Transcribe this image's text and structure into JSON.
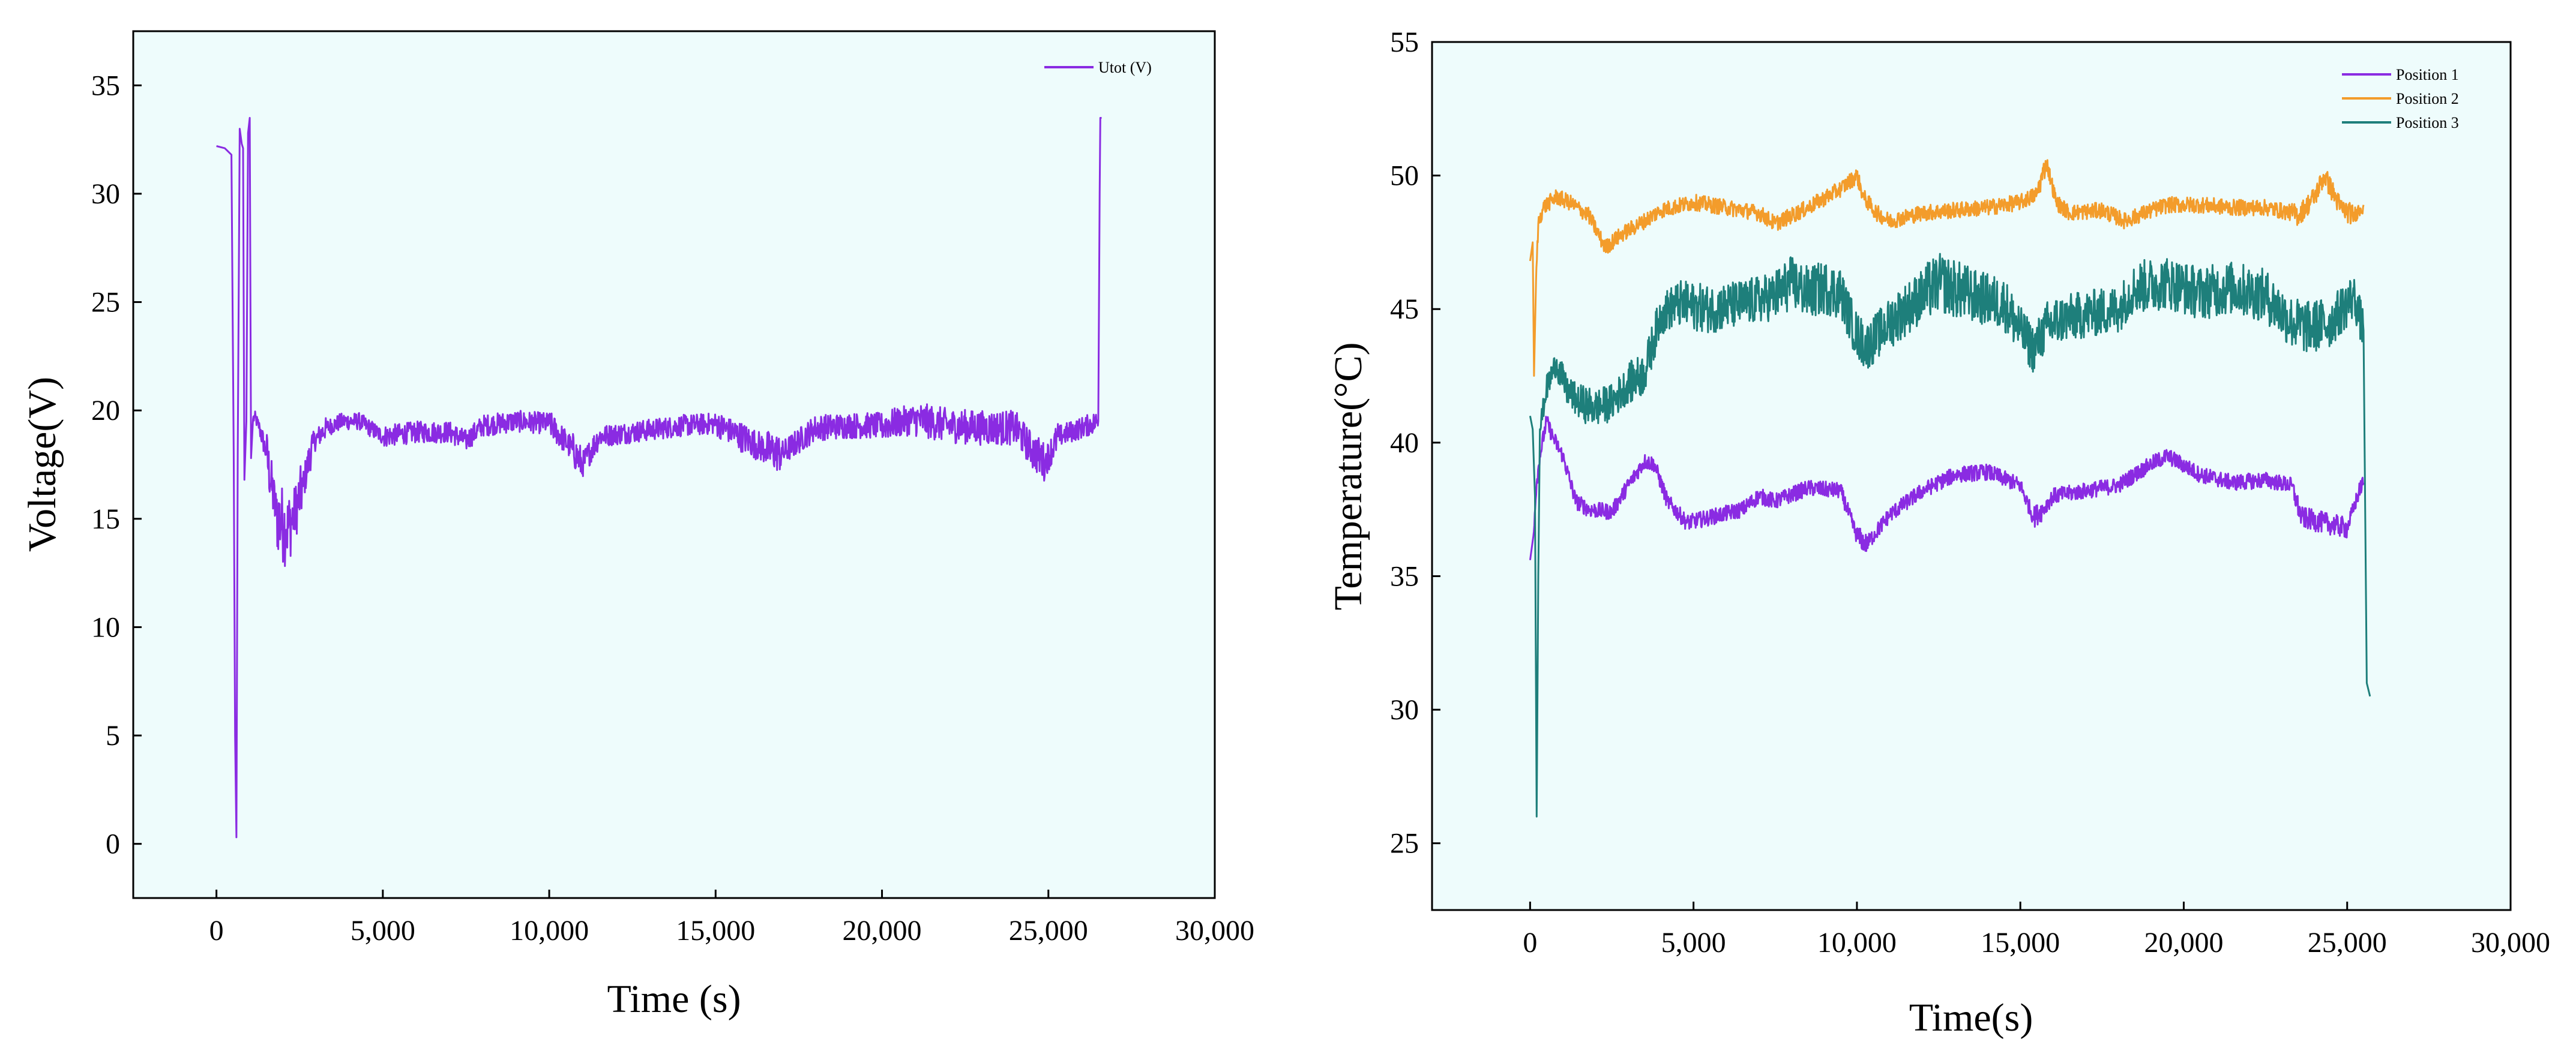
{
  "chart_data": [
    {
      "type": "line",
      "title": "",
      "xlabel": "Time (s)",
      "ylabel": "Voltage(V)",
      "xlim": [
        -2500,
        30000
      ],
      "ylim": [
        -2.5,
        37.5
      ],
      "xticks": [
        0,
        5000,
        10000,
        15000,
        20000,
        25000,
        30000
      ],
      "xtick_labels": [
        "0",
        "5,000",
        "10,000",
        "15,000",
        "20,000",
        "25,000",
        "30,000"
      ],
      "yticks": [
        0,
        5,
        10,
        15,
        20,
        25,
        30,
        35
      ],
      "ytick_labels": [
        "0",
        "5",
        "10",
        "15",
        "20",
        "25",
        "30",
        "35"
      ],
      "background": "#eefcfc",
      "legend_position": "top-right",
      "series": [
        {
          "name": "Utot (V)",
          "color": "#8a2be2",
          "x": [
            0,
            250,
            450,
            520,
            560,
            600,
            640,
            700,
            760,
            800,
            840,
            900,
            950,
            1000,
            1040,
            1100,
            1150,
            1300,
            1500,
            1800,
            2100,
            2300,
            2600,
            2900,
            3300,
            3800,
            4300,
            5000,
            6000,
            7000,
            7500,
            8000,
            9000,
            10000,
            10700,
            11000,
            11500,
            12500,
            14000,
            15000,
            15500,
            16500,
            17000,
            18000,
            19000,
            20000,
            21000,
            22000,
            23000,
            24000,
            24500,
            24900,
            25300,
            26000,
            26500,
            26540,
            26560,
            26600
          ],
          "y": [
            32.2,
            32.1,
            31.8,
            18.0,
            5.0,
            0.3,
            18.0,
            33.0,
            32.3,
            32.1,
            16.8,
            19.5,
            32.8,
            33.5,
            17.8,
            19.6,
            19.7,
            19.2,
            18.0,
            15.2,
            14.5,
            15.0,
            16.5,
            18.5,
            19.2,
            19.5,
            19.5,
            18.8,
            19.0,
            19.0,
            18.6,
            19.3,
            19.5,
            19.4,
            18.2,
            17.5,
            18.8,
            19.0,
            19.3,
            19.4,
            19.0,
            18.2,
            18.0,
            19.2,
            19.3,
            19.3,
            19.6,
            19.3,
            19.2,
            19.2,
            18.2,
            17.6,
            18.8,
            19.2,
            19.5,
            30.0,
            33.5,
            33.5
          ],
          "noise": [
            0,
            0,
            0,
            0,
            0,
            0,
            0,
            0,
            0,
            0,
            0,
            0,
            0,
            0,
            0,
            0.3,
            0.3,
            0.5,
            1.2,
            1.8,
            1.8,
            1.6,
            1.3,
            0.8,
            0.5,
            0.4,
            0.4,
            0.6,
            0.5,
            0.5,
            0.6,
            0.5,
            0.5,
            0.6,
            0.9,
            0.8,
            0.6,
            0.5,
            0.5,
            0.6,
            0.7,
            1.0,
            0.9,
            0.6,
            0.6,
            0.7,
            0.8,
            0.8,
            0.8,
            0.8,
            0.9,
            0.9,
            0.7,
            0.5,
            0.5,
            0,
            0,
            0
          ]
        }
      ]
    },
    {
      "type": "line",
      "title": "",
      "xlabel": "Time(s)",
      "ylabel": "Temperature(°C)",
      "xlim": [
        -3000,
        30000
      ],
      "ylim": [
        22.5,
        55
      ],
      "xticks": [
        0,
        5000,
        10000,
        15000,
        20000,
        25000,
        30000
      ],
      "xtick_labels": [
        "0",
        "5,000",
        "10,000",
        "15,000",
        "20,000",
        "25,000",
        "30,000"
      ],
      "yticks": [
        25,
        30,
        35,
        40,
        45,
        50,
        55
      ],
      "ytick_labels": [
        "25",
        "30",
        "35",
        "40",
        "45",
        "50",
        "55"
      ],
      "background": "#eefcfc",
      "legend_position": "top-right",
      "series": [
        {
          "name": "Position 1",
          "color": "#8a2be2",
          "x": [
            0,
            100,
            200,
            300,
            500,
            700,
            1000,
            1400,
            1800,
            2500,
            3000,
            3500,
            3800,
            4200,
            4800,
            5500,
            6500,
            7000,
            7500,
            8500,
            9500,
            10000,
            10300,
            11000,
            12000,
            13000,
            14000,
            15000,
            15400,
            15700,
            16000,
            17000,
            18000,
            19000,
            19500,
            20500,
            21500,
            22500,
            23300,
            23600,
            24300,
            25000,
            25400,
            25500
          ],
          "y": [
            35.6,
            36.5,
            38.5,
            39.5,
            40.8,
            40.2,
            39.5,
            37.8,
            37.5,
            37.4,
            38.4,
            39.3,
            39.2,
            37.8,
            37.0,
            37.2,
            37.5,
            38.0,
            37.8,
            38.3,
            38.2,
            36.5,
            36.2,
            37.3,
            38.2,
            38.8,
            38.9,
            38.4,
            37.2,
            37.5,
            38.0,
            38.2,
            38.4,
            39.2,
            39.5,
            38.8,
            38.5,
            38.6,
            38.4,
            37.2,
            37.0,
            36.8,
            38.3,
            38.5
          ],
          "noise": [
            0,
            0.2,
            0.3,
            0.3,
            0.3,
            0.3,
            0.3,
            0.3,
            0.3,
            0.3,
            0.3,
            0.3,
            0.3,
            0.3,
            0.3,
            0.3,
            0.3,
            0.4,
            0.3,
            0.3,
            0.3,
            0.4,
            0.4,
            0.3,
            0.3,
            0.3,
            0.3,
            0.3,
            0.4,
            0.4,
            0.3,
            0.3,
            0.3,
            0.3,
            0.3,
            0.3,
            0.3,
            0.3,
            0.4,
            0.4,
            0.4,
            0.4,
            0.3,
            0.3
          ]
        },
        {
          "name": "Position 2",
          "color": "#f39c2b",
          "x": [
            0,
            80,
            120,
            180,
            250,
            400,
            800,
            1200,
            1800,
            2300,
            2800,
            3500,
            4000,
            5000,
            6000,
            7000,
            7500,
            8500,
            9500,
            10000,
            10200,
            10600,
            11000,
            12000,
            13000,
            14000,
            15000,
            15500,
            15800,
            16100,
            16500,
            17500,
            18200,
            18800,
            19500,
            20500,
            21500,
            22500,
            23300,
            23500,
            24000,
            24300,
            24800,
            25200,
            25500
          ],
          "y": [
            46.8,
            47.5,
            42.5,
            46.0,
            48.2,
            48.8,
            49.2,
            49.0,
            48.5,
            47.3,
            47.8,
            48.3,
            48.7,
            49.0,
            48.8,
            48.6,
            48.2,
            48.8,
            49.5,
            50.0,
            49.2,
            48.6,
            48.3,
            48.6,
            48.7,
            48.8,
            49.0,
            49.3,
            50.5,
            49.0,
            48.6,
            48.7,
            48.3,
            48.6,
            48.9,
            48.9,
            48.8,
            48.8,
            48.6,
            48.5,
            49.2,
            50.0,
            48.8,
            48.5,
            48.9
          ],
          "noise": [
            0,
            0.3,
            0,
            0.3,
            0.3,
            0.3,
            0.3,
            0.3,
            0.3,
            0.3,
            0.3,
            0.3,
            0.3,
            0.3,
            0.3,
            0.3,
            0.3,
            0.3,
            0.3,
            0.3,
            0.3,
            0.3,
            0.3,
            0.3,
            0.3,
            0.3,
            0.3,
            0.4,
            0.6,
            0.3,
            0.3,
            0.3,
            0.3,
            0.3,
            0.3,
            0.3,
            0.3,
            0.3,
            0.4,
            0.4,
            0.4,
            0.5,
            0.4,
            0.4,
            0.3
          ]
        },
        {
          "name": "Position 3",
          "color": "#1e7f7b",
          "x": [
            0,
            80,
            150,
            200,
            250,
            300,
            500,
            800,
            1100,
            1500,
            2000,
            2500,
            3000,
            3500,
            4000,
            4500,
            5500,
            6500,
            7500,
            8000,
            8500,
            9000,
            9500,
            10000,
            10300,
            11000,
            12000,
            12500,
            13500,
            14500,
            15000,
            15400,
            15800,
            16200,
            17000,
            18000,
            18500,
            19500,
            20500,
            21500,
            22500,
            23300,
            23800,
            24500,
            25200,
            25500,
            25600,
            25700
          ],
          "y": [
            41.0,
            40.5,
            38.0,
            26.0,
            35.0,
            40.5,
            42.0,
            43.0,
            42.0,
            41.5,
            41.3,
            41.5,
            42.2,
            42.6,
            44.8,
            45.2,
            45.0,
            45.2,
            45.5,
            46.0,
            45.6,
            45.8,
            45.6,
            44.0,
            43.6,
            44.5,
            45.5,
            46.0,
            45.5,
            45.2,
            44.2,
            43.5,
            44.3,
            44.6,
            44.8,
            45.0,
            45.8,
            46.0,
            45.6,
            45.8,
            45.5,
            44.5,
            44.3,
            44.5,
            45.5,
            44.2,
            31.0,
            30.5
          ],
          "noise": [
            0,
            0.3,
            0,
            0,
            0,
            0.4,
            0.5,
            0.6,
            0.6,
            0.7,
            0.7,
            0.7,
            0.8,
            0.8,
            0.8,
            0.9,
            0.9,
            0.9,
            1.0,
            1.0,
            1.1,
            1.0,
            1.0,
            0.9,
            0.9,
            1.0,
            1.1,
            1.2,
            1.1,
            1.0,
            1.0,
            0.9,
            1.0,
            1.0,
            0.9,
            0.9,
            1.0,
            1.0,
            1.0,
            1.0,
            1.0,
            1.0,
            1.0,
            1.0,
            0.9,
            0.8,
            0,
            0
          ]
        }
      ]
    }
  ]
}
